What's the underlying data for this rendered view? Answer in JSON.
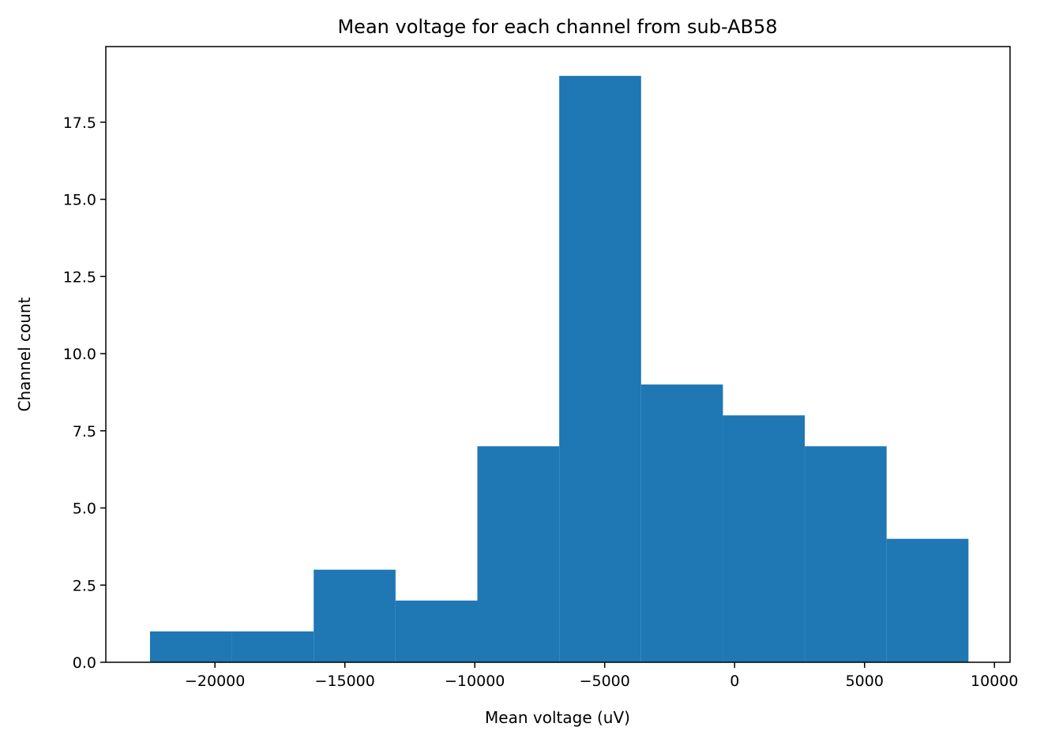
{
  "chart_data": {
    "type": "bar",
    "title": "Mean voltage for each channel from sub-AB58",
    "xlabel": "Mean voltage (uV)",
    "ylabel": "Channel count",
    "bar_color": "#1f77b4",
    "xlim": [
      -24200,
      10600
    ],
    "ylim": [
      0,
      19.95
    ],
    "grid": false,
    "bins": [
      {
        "start": -22500,
        "end": -19350,
        "count": 1
      },
      {
        "start": -19350,
        "end": -16200,
        "count": 1
      },
      {
        "start": -16200,
        "end": -13050,
        "count": 3
      },
      {
        "start": -13050,
        "end": -9900,
        "count": 2
      },
      {
        "start": -9900,
        "end": -6750,
        "count": 7
      },
      {
        "start": -6750,
        "end": -3600,
        "count": 19
      },
      {
        "start": -3600,
        "end": -450,
        "count": 9
      },
      {
        "start": -450,
        "end": 2700,
        "count": 8
      },
      {
        "start": 2700,
        "end": 5850,
        "count": 7
      },
      {
        "start": 5850,
        "end": 9000,
        "count": 4
      }
    ],
    "xticks": [
      {
        "value": -20000,
        "label": "−20000"
      },
      {
        "value": -15000,
        "label": "−15000"
      },
      {
        "value": -10000,
        "label": "−10000"
      },
      {
        "value": -5000,
        "label": "−5000"
      },
      {
        "value": 0,
        "label": "0"
      },
      {
        "value": 5000,
        "label": "5000"
      },
      {
        "value": 10000,
        "label": "10000"
      }
    ],
    "yticks": [
      {
        "value": 0,
        "label": "0.0"
      },
      {
        "value": 2.5,
        "label": "2.5"
      },
      {
        "value": 5,
        "label": "5.0"
      },
      {
        "value": 7.5,
        "label": "7.5"
      },
      {
        "value": 10,
        "label": "10.0"
      },
      {
        "value": 12.5,
        "label": "12.5"
      },
      {
        "value": 15,
        "label": "15.0"
      },
      {
        "value": 17.5,
        "label": "17.5"
      }
    ]
  }
}
